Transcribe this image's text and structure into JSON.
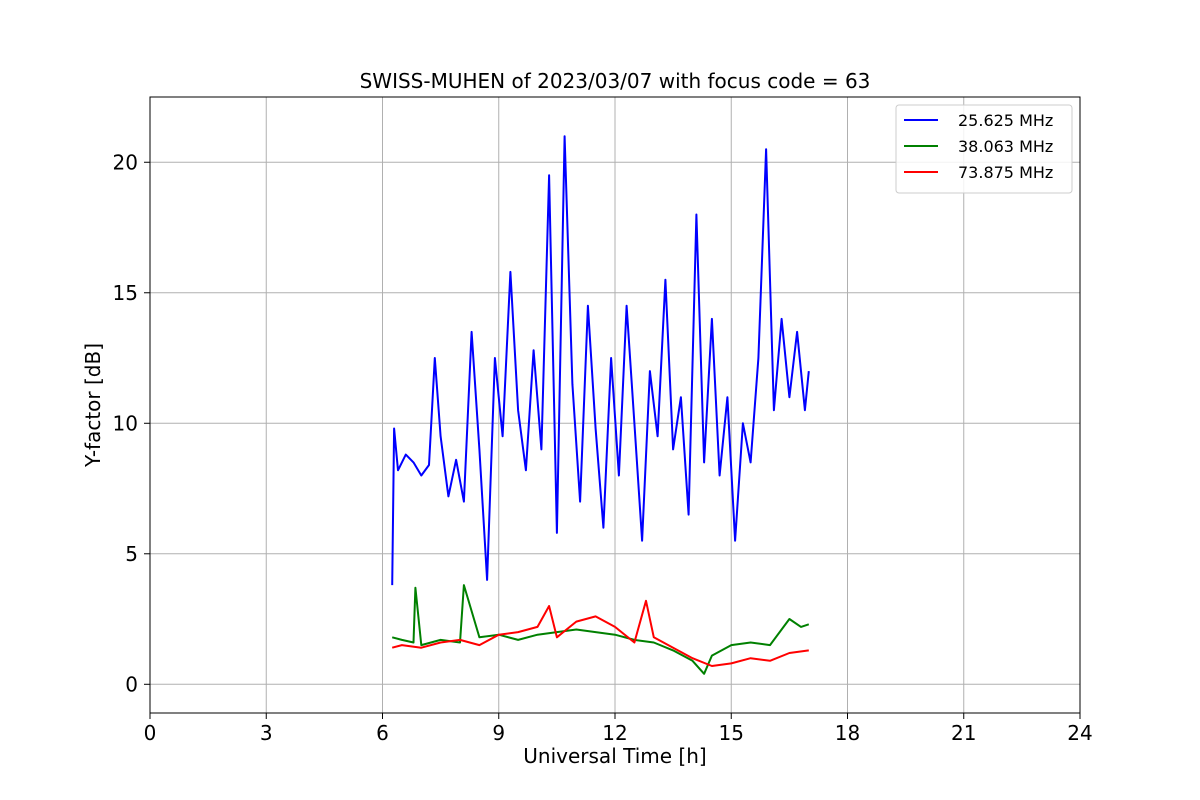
{
  "chart_data": {
    "type": "line",
    "title": "SWISS-MUHEN of 2023/03/07 with focus code = 63",
    "xlabel": "Universal Time [h]",
    "ylabel": "Y-factor [dB]",
    "xlim": [
      0,
      24
    ],
    "ylim": [
      -1.1,
      22.5
    ],
    "xticks": [
      0,
      3,
      6,
      9,
      12,
      15,
      18,
      21,
      24
    ],
    "yticks": [
      0,
      5,
      10,
      15,
      20
    ],
    "grid": true,
    "legend_position": "top-right",
    "series": [
      {
        "name": "25.625 MHz",
        "color": "#0000ff",
        "x": [
          6.25,
          6.3,
          6.4,
          6.6,
          6.8,
          7.0,
          7.2,
          7.35,
          7.5,
          7.7,
          7.9,
          8.1,
          8.3,
          8.5,
          8.7,
          8.9,
          9.1,
          9.3,
          9.5,
          9.7,
          9.9,
          10.1,
          10.3,
          10.5,
          10.7,
          10.9,
          11.1,
          11.3,
          11.5,
          11.7,
          11.9,
          12.1,
          12.3,
          12.5,
          12.7,
          12.9,
          13.1,
          13.3,
          13.5,
          13.7,
          13.9,
          14.1,
          14.3,
          14.5,
          14.7,
          14.9,
          15.1,
          15.3,
          15.5,
          15.7,
          15.9,
          16.1,
          16.3,
          16.5,
          16.7,
          16.9,
          17.0
        ],
        "y": [
          3.8,
          9.8,
          8.2,
          8.8,
          8.5,
          8.0,
          8.4,
          12.5,
          9.5,
          7.2,
          8.6,
          7.0,
          13.5,
          9.0,
          4.0,
          12.5,
          9.5,
          15.8,
          10.5,
          8.2,
          12.8,
          9.0,
          19.5,
          5.8,
          21.0,
          11.5,
          7.0,
          14.5,
          9.8,
          6.0,
          12.5,
          8.0,
          14.5,
          10.0,
          5.5,
          12.0,
          9.5,
          15.5,
          9.0,
          11.0,
          6.5,
          18.0,
          8.5,
          14.0,
          8.0,
          11.0,
          5.5,
          10.0,
          8.5,
          12.5,
          20.5,
          10.5,
          14.0,
          11.0,
          13.5,
          10.5,
          12.0
        ]
      },
      {
        "name": "38.063 MHz",
        "color": "#008000",
        "x": [
          6.25,
          6.5,
          6.8,
          6.85,
          7.0,
          7.5,
          8.0,
          8.1,
          8.5,
          9.0,
          9.5,
          10.0,
          10.5,
          11.0,
          11.5,
          12.0,
          12.5,
          13.0,
          13.5,
          14.0,
          14.3,
          14.5,
          15.0,
          15.5,
          16.0,
          16.3,
          16.5,
          16.8,
          17.0
        ],
        "y": [
          1.8,
          1.7,
          1.6,
          3.7,
          1.5,
          1.7,
          1.6,
          3.8,
          1.8,
          1.9,
          1.7,
          1.9,
          2.0,
          2.1,
          2.0,
          1.9,
          1.7,
          1.6,
          1.3,
          0.9,
          0.4,
          1.1,
          1.5,
          1.6,
          1.5,
          2.1,
          2.5,
          2.2,
          2.3
        ]
      },
      {
        "name": "73.875 MHz",
        "color": "#ff0000",
        "x": [
          6.25,
          6.5,
          7.0,
          7.5,
          8.0,
          8.5,
          9.0,
          9.5,
          10.0,
          10.3,
          10.5,
          11.0,
          11.5,
          12.0,
          12.5,
          12.8,
          13.0,
          13.5,
          14.0,
          14.5,
          15.0,
          15.5,
          16.0,
          16.5,
          17.0
        ],
        "y": [
          1.4,
          1.5,
          1.4,
          1.6,
          1.7,
          1.5,
          1.9,
          2.0,
          2.2,
          3.0,
          1.8,
          2.4,
          2.6,
          2.2,
          1.6,
          3.2,
          1.8,
          1.4,
          1.0,
          0.7,
          0.8,
          1.0,
          0.9,
          1.2,
          1.3
        ]
      }
    ]
  }
}
